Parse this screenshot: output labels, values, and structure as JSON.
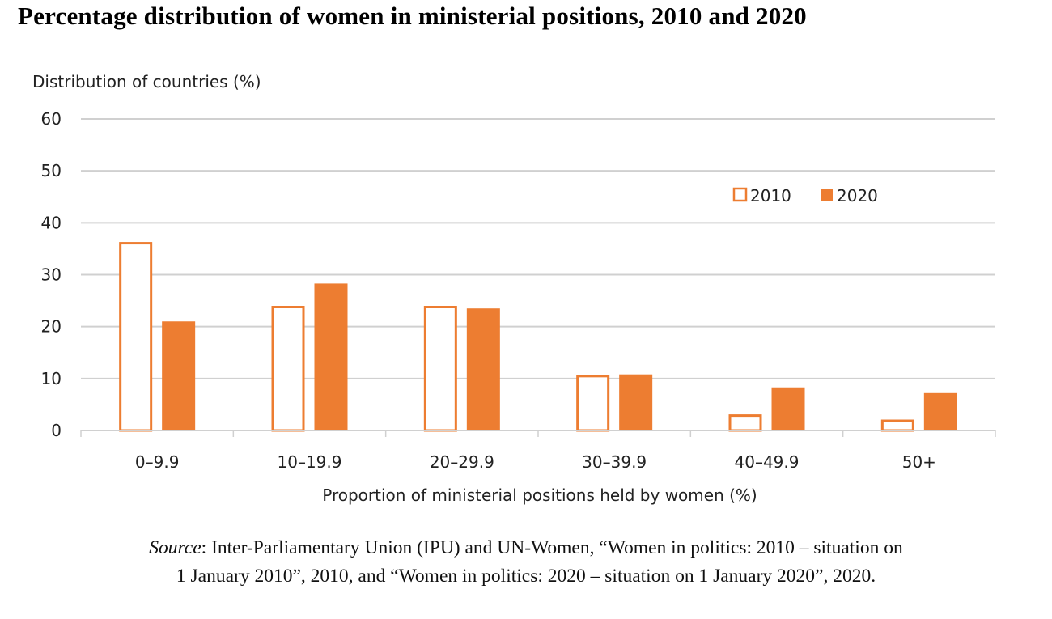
{
  "title": "Percentage distribution of women in ministerial positions, 2010 and 2020",
  "source": {
    "label": "Source",
    "line1": ": Inter-Parliamentary Union (IPU) and UN-Women, “Women in politics: 2010 – situation on",
    "line2": "1 January 2010”, 2010, and “Women in politics: 2020 – situation on 1 January 2020”, 2020."
  },
  "colors": {
    "accent": "#ED7D31",
    "grid": "#D0D0D0",
    "text": "#222222"
  },
  "chart_data": {
    "type": "bar",
    "title": "Percentage distribution of women in ministerial positions, 2010 and 2020",
    "xlabel": "Proportion of ministerial positions held by women (%)",
    "ylabel": "Distribution of countries (%)",
    "ylim": [
      0,
      60
    ],
    "yticks": [
      0,
      10,
      20,
      30,
      40,
      50,
      60
    ],
    "grid": true,
    "legend_position": "top-right",
    "categories": [
      "0–9.9",
      "10–19.9",
      "20–29.9",
      "30–39.9",
      "40–49.9",
      "50+"
    ],
    "series": [
      {
        "name": "2010",
        "style": "outline",
        "values": [
          36.3,
          24.0,
          24.0,
          10.7,
          3.1,
          2.1
        ]
      },
      {
        "name": "2020",
        "style": "filled",
        "values": [
          21.0,
          28.3,
          23.5,
          10.8,
          8.3,
          7.2
        ]
      }
    ]
  }
}
